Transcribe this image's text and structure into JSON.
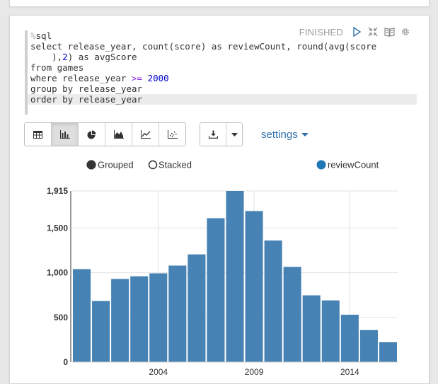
{
  "paragraph": {
    "status": "FINISHED",
    "icons": [
      "run-icon",
      "collapse-icon",
      "book-icon",
      "gear-icon"
    ]
  },
  "editor": {
    "lines": [
      "%sql",
      "select release_year, count(score) as reviewCount, round(avg(score",
      "    ),2) as avgScore",
      "from games",
      "where release_year >= 2000",
      "group by release_year",
      "order by release_year"
    ]
  },
  "toolbar": {
    "view_buttons": [
      "table-icon",
      "bar-chart-icon",
      "pie-chart-icon",
      "area-chart-icon",
      "line-chart-icon",
      "scatter-chart-icon"
    ],
    "active_view": "bar-chart-icon",
    "download_icon": "download-icon",
    "settings_label": "settings"
  },
  "chart_controls": {
    "grouped_label": "Grouped",
    "stacked_label": "Stacked",
    "selected_mode": "Grouped"
  },
  "colors": {
    "bar": "#4682b4",
    "link": "#3071a9"
  },
  "chart_data": {
    "type": "bar",
    "x": [
      2000,
      2001,
      2002,
      2003,
      2004,
      2005,
      2006,
      2007,
      2008,
      2009,
      2010,
      2011,
      2012,
      2013,
      2014,
      2015,
      2016
    ],
    "series": [
      {
        "name": "reviewCount",
        "values": [
          1040,
          683,
          930,
          960,
          993,
          1080,
          1205,
          1610,
          1915,
          1690,
          1360,
          1065,
          747,
          690,
          530,
          358,
          222
        ]
      }
    ],
    "yticks": [
      "0",
      "500",
      "1,000",
      "1,500",
      "1,915"
    ],
    "ytick_values": [
      0,
      500,
      1000,
      1500,
      1915
    ],
    "xticks": [
      "2004",
      "2009",
      "2014"
    ],
    "xtick_values": [
      2004,
      2009,
      2014
    ],
    "ylim": [
      0,
      1915
    ],
    "grid": true,
    "legend": "top-right"
  }
}
